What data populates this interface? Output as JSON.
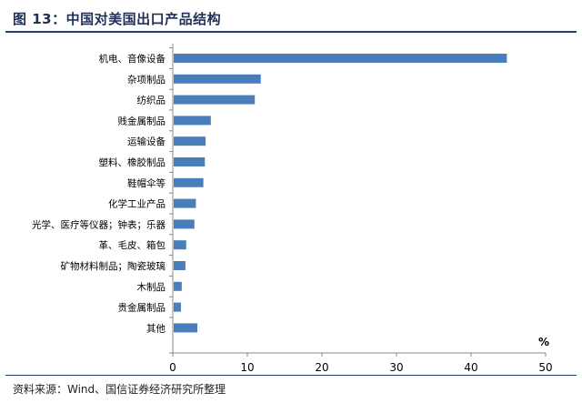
{
  "title": "图 13：中国对美国出口产品结构",
  "source": "资料来源：Wind、国信证券经济研究所整理",
  "chart_data": {
    "type": "bar",
    "orientation": "horizontal",
    "unit_label": "%",
    "categories": [
      "机电、音像设备",
      "杂项制品",
      "纺织品",
      "贱金属制品",
      "运输设备",
      "塑料、橡胶制品",
      "鞋帽伞等",
      "化学工业产品",
      "光学、医疗等仪器；钟表；乐器",
      "革、毛皮、箱包",
      "矿物材料制品；陶瓷玻璃",
      "木制品",
      "贵金属制品",
      "其他"
    ],
    "values": [
      44.8,
      11.8,
      11.0,
      5.1,
      4.4,
      4.3,
      4.1,
      3.1,
      2.9,
      1.8,
      1.7,
      1.2,
      1.1,
      3.3
    ],
    "xlim": [
      0,
      50
    ],
    "xticks": [
      0,
      10,
      20,
      30,
      40,
      50
    ],
    "bar_color": "#4a7ebb",
    "grid": false
  }
}
